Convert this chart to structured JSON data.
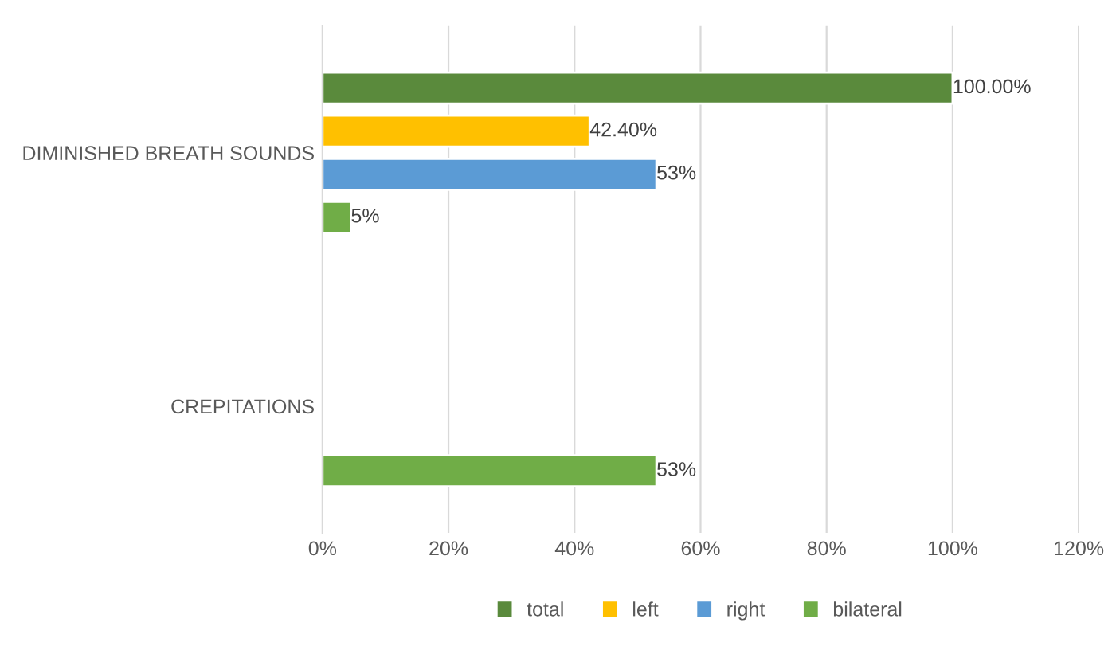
{
  "chart_data": {
    "type": "bar",
    "orientation": "horizontal",
    "categories": [
      "DIMINISHED BREATH SOUNDS",
      "CREPITATIONS"
    ],
    "series": [
      {
        "name": "total",
        "color": "#5a8a3c",
        "values": [
          100,
          null
        ],
        "value_labels": [
          "100.00%",
          null
        ]
      },
      {
        "name": "left",
        "color": "#ffc000",
        "values": [
          42.4,
          null
        ],
        "value_labels": [
          "42.40%",
          null
        ]
      },
      {
        "name": "right",
        "color": "#5b9bd5",
        "values": [
          53,
          null
        ],
        "value_labels": [
          "53%",
          null
        ]
      },
      {
        "name": "bilateral",
        "color": "#70ad47",
        "values": [
          4.5,
          53
        ],
        "value_labels": [
          "5%",
          "53%"
        ]
      }
    ],
    "xlim": [
      0,
      120
    ],
    "xticks": [
      {
        "value": 0,
        "label": "0%"
      },
      {
        "value": 20,
        "label": "20%"
      },
      {
        "value": 40,
        "label": "40%"
      },
      {
        "value": 60,
        "label": "60%"
      },
      {
        "value": 80,
        "label": "80%"
      },
      {
        "value": 100,
        "label": "100%"
      },
      {
        "value": 120,
        "label": "120%"
      }
    ],
    "grid": "x",
    "legend": "bottom"
  }
}
